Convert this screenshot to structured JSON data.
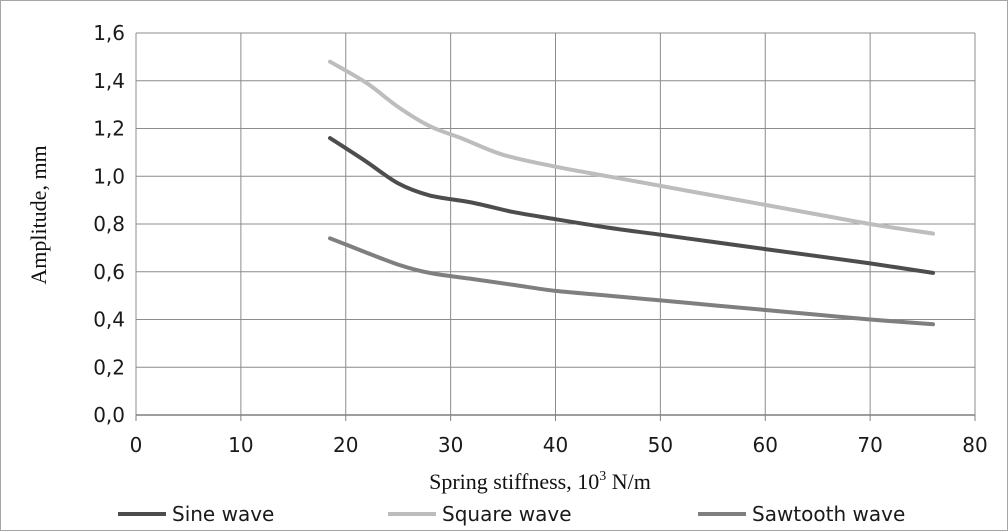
{
  "chart_data": {
    "type": "line",
    "title": "",
    "xlabel": "Spring stiffness, 10",
    "xlabel_sup": "3",
    "xlabel_unit": " N/m",
    "ylabel": "Amplitude, mm",
    "xlim": [
      0,
      80
    ],
    "ylim": [
      0,
      1.6
    ],
    "xticks": [
      "0",
      "10",
      "20",
      "30",
      "40",
      "50",
      "60",
      "70",
      "80"
    ],
    "yticks": [
      "0,0",
      "0,2",
      "0,4",
      "0,6",
      "0,8",
      "1,0",
      "1,2",
      "1,4",
      "1,6"
    ],
    "grid": true,
    "legend_position": "bottom",
    "series": [
      {
        "name": "Sine wave",
        "color": "#4d4d4d",
        "x": [
          18.5,
          22,
          25,
          28,
          32,
          36,
          40,
          45,
          50,
          55,
          60,
          65,
          70,
          76
        ],
        "y": [
          1.16,
          1.06,
          0.97,
          0.92,
          0.89,
          0.85,
          0.82,
          0.785,
          0.755,
          0.725,
          0.695,
          0.665,
          0.635,
          0.595
        ]
      },
      {
        "name": "Square wave",
        "color": "#bdbdbd",
        "x": [
          18.5,
          22,
          25,
          28,
          31,
          35,
          40,
          45,
          50,
          55,
          60,
          65,
          70,
          76
        ],
        "y": [
          1.48,
          1.39,
          1.29,
          1.21,
          1.16,
          1.09,
          1.04,
          1.0,
          0.96,
          0.92,
          0.88,
          0.84,
          0.8,
          0.76
        ]
      },
      {
        "name": "Sawtooth wave",
        "color": "#7f7f7f",
        "x": [
          18.5,
          22,
          25,
          28,
          32,
          36,
          40,
          45,
          50,
          55,
          60,
          65,
          70,
          76
        ],
        "y": [
          0.74,
          0.68,
          0.63,
          0.595,
          0.57,
          0.545,
          0.52,
          0.5,
          0.48,
          0.46,
          0.44,
          0.42,
          0.4,
          0.38
        ]
      }
    ]
  }
}
